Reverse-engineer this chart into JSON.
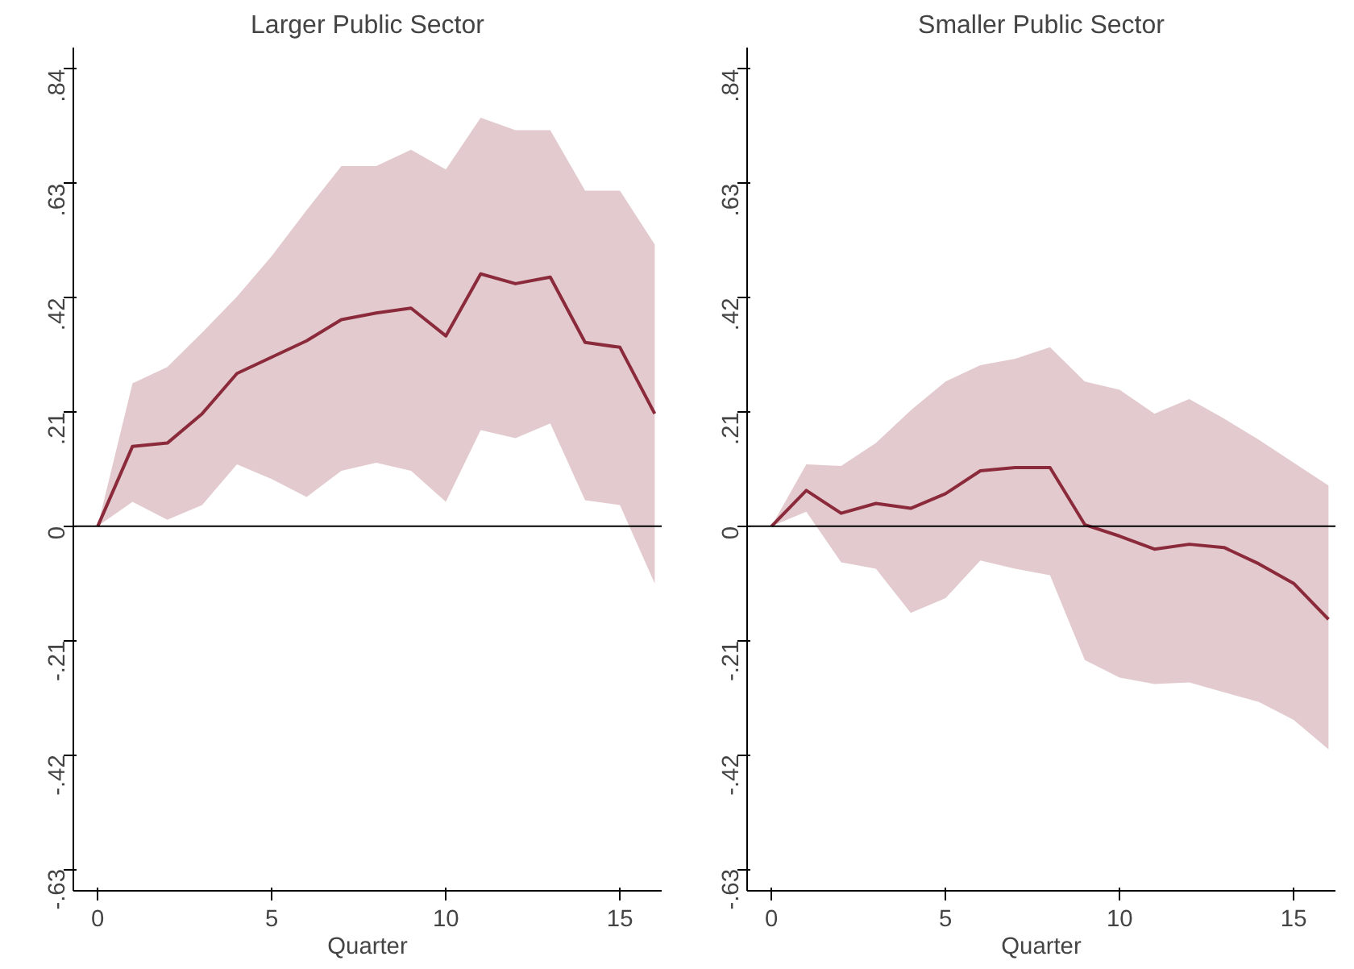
{
  "chart_data": [
    {
      "type": "line",
      "title": "Larger Public Sector",
      "xlabel": "Quarter",
      "x": [
        0,
        1,
        2,
        3,
        4,
        5,
        6,
        7,
        8,
        9,
        10,
        11,
        12,
        13,
        14,
        15,
        16
      ],
      "series": [
        {
          "color": "#8b2a3a",
          "values": [
            0,
            0.147,
            0.153,
            0.207,
            0.281,
            0.311,
            0.341,
            0.38,
            0.392,
            0.401,
            0.35,
            0.464,
            0.446,
            0.458,
            0.338,
            0.329,
            0.207
          ],
          "upper": [
            0,
            0.263,
            0.293,
            0.356,
            0.422,
            0.497,
            0.581,
            0.662,
            0.662,
            0.692,
            0.656,
            0.751,
            0.728,
            0.728,
            0.617,
            0.617,
            0.518
          ],
          "lower": [
            0,
            0.045,
            0.012,
            0.039,
            0.114,
            0.087,
            0.054,
            0.102,
            0.117,
            0.102,
            0.045,
            0.177,
            0.162,
            0.189,
            0.048,
            0.039,
            -0.105
          ]
        }
      ],
      "xlim": [
        -0.7,
        16.2
      ],
      "xticks": [
        0,
        5,
        10,
        15
      ],
      "ylim": [
        -0.67,
        0.88
      ],
      "yticks": [
        {
          "value": -0.63,
          "label": "-.63"
        },
        {
          "value": -0.42,
          "label": "-.42"
        },
        {
          "value": -0.21,
          "label": "-.21"
        },
        0,
        {
          "value": 0.21,
          "label": ".21"
        },
        {
          "value": 0.42,
          "label": ".42"
        },
        {
          "value": 0.63,
          "label": ".63"
        },
        {
          "value": 0.84,
          "label": ".84"
        }
      ],
      "ref_lines": [
        {
          "axis": "y",
          "value": 0,
          "color": "#000000"
        }
      ],
      "grid": false
    },
    {
      "type": "line",
      "title": "Smaller Public Sector",
      "xlabel": "Quarter",
      "x": [
        0,
        1,
        2,
        3,
        4,
        5,
        6,
        7,
        8,
        9,
        10,
        11,
        12,
        13,
        14,
        15,
        16
      ],
      "series": [
        {
          "color": "#8b2a3a",
          "values": [
            0,
            0.066,
            0.024,
            0.042,
            0.033,
            0.06,
            0.102,
            0.108,
            0.108,
            0.003,
            -0.018,
            -0.042,
            -0.033,
            -0.039,
            -0.069,
            -0.105,
            -0.171
          ],
          "upper": [
            0,
            0.114,
            0.111,
            0.153,
            0.213,
            0.266,
            0.296,
            0.308,
            0.329,
            0.266,
            0.251,
            0.207,
            0.234,
            0.198,
            0.159,
            0.117,
            0.075
          ],
          "lower": [
            0,
            0.027,
            -0.066,
            -0.078,
            -0.159,
            -0.132,
            -0.063,
            -0.078,
            -0.09,
            -0.246,
            -0.278,
            -0.29,
            -0.287,
            -0.305,
            -0.323,
            -0.356,
            -0.41
          ]
        }
      ],
      "xlim": [
        -0.7,
        16.2
      ],
      "xticks": [
        0,
        5,
        10,
        15
      ],
      "ylim": [
        -0.67,
        0.88
      ],
      "yticks": [
        {
          "value": -0.63,
          "label": "-.63"
        },
        {
          "value": -0.42,
          "label": "-.42"
        },
        {
          "value": -0.21,
          "label": "-.21"
        },
        0,
        {
          "value": 0.21,
          "label": ".21"
        },
        {
          "value": 0.42,
          "label": ".42"
        },
        {
          "value": 0.63,
          "label": ".63"
        },
        {
          "value": 0.84,
          "label": ".84"
        }
      ],
      "ref_lines": [
        {
          "axis": "y",
          "value": 0,
          "color": "#000000"
        }
      ],
      "grid": false
    }
  ]
}
